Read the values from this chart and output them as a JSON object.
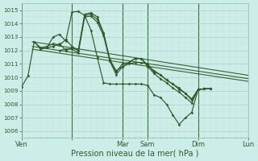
{
  "background_color": "#cceee8",
  "grid_major_color": "#c0dcd8",
  "grid_minor_color": "#d8eeeb",
  "vline_color": "#3a6b3a",
  "line_color": "#2d5a2d",
  "title": "Pression niveau de la mer( hPa )",
  "title_fontsize": 7.5,
  "ylim": [
    1005.5,
    1015.5
  ],
  "yticks": [
    1006,
    1007,
    1008,
    1009,
    1010,
    1011,
    1012,
    1013,
    1014,
    1015
  ],
  "xlim": [
    0,
    216
  ],
  "x_day_positions": [
    0,
    48,
    96,
    120,
    168,
    216
  ],
  "x_day_labels": [
    "Ven",
    "",
    "Mar",
    "Sam",
    "Dim",
    "Lun"
  ],
  "series": [
    {
      "x": [
        0,
        6,
        12,
        18,
        24,
        30,
        36,
        42,
        48,
        54,
        60,
        66,
        72,
        78,
        84,
        90,
        96,
        102,
        108,
        114,
        120,
        126,
        132,
        138,
        144,
        150,
        156,
        162,
        168,
        174,
        180
      ],
      "y": [
        1009.3,
        1010.1,
        1012.65,
        1012.1,
        1012.2,
        1013.0,
        1013.2,
        1012.7,
        1014.85,
        1014.9,
        1014.6,
        1013.5,
        1011.5,
        1009.6,
        1009.5,
        1009.5,
        1009.5,
        1009.5,
        1009.5,
        1009.5,
        1009.4,
        1008.7,
        1008.5,
        1008.0,
        1007.2,
        1006.5,
        1007.0,
        1007.4,
        1009.1,
        1009.15,
        1009.15
      ]
    },
    {
      "x": [
        12,
        18,
        24,
        30,
        36,
        42,
        48,
        54,
        60,
        66,
        72,
        78,
        84,
        90,
        96,
        102,
        108,
        114,
        120,
        126,
        132,
        138,
        144,
        150,
        156,
        162,
        168,
        174,
        180
      ],
      "y": [
        1012.65,
        1012.2,
        1012.3,
        1012.5,
        1012.4,
        1012.8,
        1012.3,
        1012.0,
        1014.7,
        1014.8,
        1014.5,
        1013.3,
        1011.3,
        1010.5,
        1010.8,
        1011.0,
        1011.1,
        1011.1,
        1011.0,
        1010.4,
        1010.2,
        1009.8,
        1009.5,
        1009.2,
        1008.8,
        1008.4,
        1009.1,
        1009.15,
        1009.15
      ]
    },
    {
      "x": [
        24,
        30,
        36,
        42,
        48,
        54,
        60,
        66,
        72,
        78,
        84,
        90,
        96,
        102,
        108,
        114,
        120,
        126,
        132,
        138,
        144,
        150,
        156,
        162,
        168,
        174,
        180
      ],
      "y": [
        1012.2,
        1012.3,
        1012.5,
        1012.0,
        1012.2,
        1012.0,
        1014.6,
        1014.7,
        1014.3,
        1013.3,
        1011.3,
        1010.4,
        1011.0,
        1011.1,
        1011.4,
        1011.4,
        1010.9,
        1010.5,
        1010.2,
        1009.8,
        1009.5,
        1009.1,
        1008.8,
        1008.3,
        1009.1,
        1009.15,
        1009.15
      ]
    },
    {
      "x": [
        36,
        42,
        48,
        54,
        60,
        66,
        72,
        78,
        84,
        90,
        96,
        102,
        108,
        114,
        120,
        126,
        132,
        138,
        144,
        150,
        156,
        162,
        168,
        174,
        180
      ],
      "y": [
        1012.0,
        1012.1,
        1012.1,
        1011.8,
        1014.5,
        1014.55,
        1014.1,
        1013.1,
        1011.2,
        1010.2,
        1010.8,
        1011.1,
        1011.4,
        1011.4,
        1010.8,
        1010.3,
        1009.9,
        1009.6,
        1009.2,
        1008.9,
        1008.5,
        1008.1,
        1009.1,
        1009.15,
        1009.15
      ]
    }
  ],
  "trend_lines": [
    {
      "x": [
        10,
        216
      ],
      "y": [
        1012.65,
        1010.15
      ]
    },
    {
      "x": [
        10,
        216
      ],
      "y": [
        1012.3,
        1009.9
      ]
    },
    {
      "x": [
        10,
        216
      ],
      "y": [
        1012.1,
        1009.7
      ]
    }
  ]
}
